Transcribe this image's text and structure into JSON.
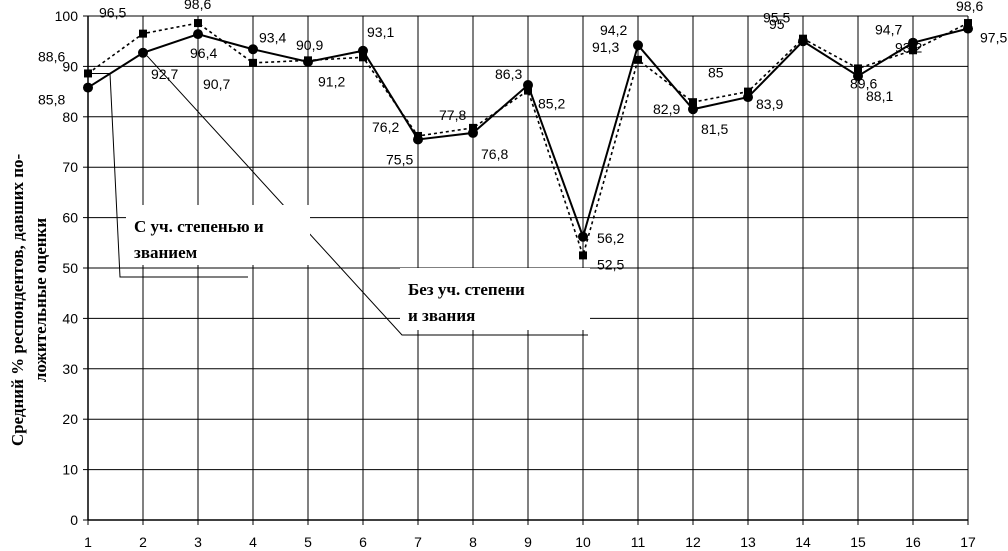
{
  "chart_data": {
    "type": "line",
    "title": "",
    "xlabel": "",
    "ylabel_lines": [
      "Средний % респондентов, давших по-",
      "ложительные оценки"
    ],
    "categories": [
      "1",
      "2",
      "3",
      "4",
      "5",
      "6",
      "7",
      "8",
      "9",
      "10",
      "11",
      "12",
      "13",
      "14",
      "15",
      "16",
      "17"
    ],
    "yticks": [
      "0",
      "10",
      "20",
      "30",
      "40",
      "50",
      "60",
      "70",
      "80",
      "90",
      "100"
    ],
    "ylim": [
      0,
      100
    ],
    "grid": true,
    "series": [
      {
        "name": "С уч. степенью и званием",
        "values": [
          85.8,
          92.7,
          96.4,
          93.4,
          90.9,
          93.1,
          75.5,
          76.8,
          86.3,
          56.2,
          94.2,
          81.5,
          83.9,
          95.0,
          88.1,
          94.7,
          97.5
        ],
        "labels": [
          "85,8",
          "92,7",
          "96,4",
          "93,4",
          "90,9",
          "93,1",
          "75,5",
          "76,8",
          "86,3",
          "56,2",
          "94,2",
          "81,5",
          "83,9",
          "95",
          "88,1",
          "94,7",
          "97,5"
        ],
        "line_style": "solid",
        "marker": "circle",
        "color": "#000000"
      },
      {
        "name": "Без уч. степени и звания",
        "values": [
          88.6,
          96.5,
          98.6,
          90.7,
          91.2,
          91.8,
          76.2,
          77.8,
          85.2,
          52.5,
          91.3,
          82.9,
          85.0,
          95.5,
          89.6,
          93.2,
          98.6
        ],
        "labels": [
          "88,6",
          "96,5",
          "98,6",
          "90,7",
          "91,2",
          "",
          "76,2",
          "77,8",
          "85,2",
          "52,5",
          "91,3",
          "82,9",
          "85",
          "95,5",
          "89,6",
          "93,2",
          "98,6"
        ],
        "line_style": "dotted",
        "marker": "square",
        "color": "#000000"
      }
    ],
    "callouts": [
      {
        "lines": [
          "С уч. степенью и",
          "званием"
        ]
      },
      {
        "lines": [
          "Без уч. степени",
          "и звания"
        ]
      }
    ]
  }
}
